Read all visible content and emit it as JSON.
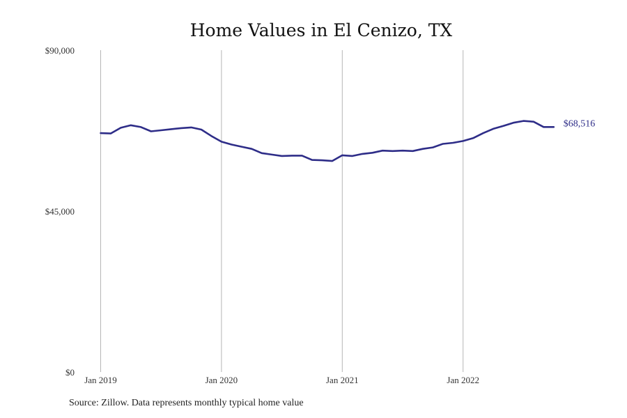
{
  "chart_data": {
    "type": "line",
    "title": "Home Values in El Cenizo, TX",
    "xlabel": "",
    "ylabel": "",
    "ylim": [
      0,
      90000
    ],
    "y_ticks": [
      {
        "value": 0,
        "label": "$0"
      },
      {
        "value": 45000,
        "label": "$45,000"
      },
      {
        "value": 90000,
        "label": "$90,000"
      }
    ],
    "x_ticks": [
      {
        "value": "2019-01",
        "label": "Jan 2019"
      },
      {
        "value": "2020-01",
        "label": "Jan 2020"
      },
      {
        "value": "2021-01",
        "label": "Jan 2021"
      },
      {
        "value": "2022-01",
        "label": "Jan 2022"
      }
    ],
    "grid": "vertical",
    "line_color": "#2e2d88",
    "series": [
      {
        "x": [
          "2019-01",
          "2019-02",
          "2019-03",
          "2019-04",
          "2019-05",
          "2019-06",
          "2019-07",
          "2019-08",
          "2019-09",
          "2019-10",
          "2019-11",
          "2019-12",
          "2020-01",
          "2020-02",
          "2020-03",
          "2020-04",
          "2020-05",
          "2020-06",
          "2020-07",
          "2020-08",
          "2020-09",
          "2020-10",
          "2020-11",
          "2020-12",
          "2021-01",
          "2021-02",
          "2021-03",
          "2021-04",
          "2021-05",
          "2021-06",
          "2021-07",
          "2021-08",
          "2021-09",
          "2021-10",
          "2021-11",
          "2021-12",
          "2022-01",
          "2022-02",
          "2022-03",
          "2022-04",
          "2022-05",
          "2022-06",
          "2022-07",
          "2022-08",
          "2022-09",
          "2022-10"
        ],
        "values": [
          66800,
          66700,
          68300,
          69000,
          68500,
          67300,
          67600,
          67900,
          68200,
          68400,
          67800,
          66000,
          64400,
          63600,
          63000,
          62400,
          61200,
          60800,
          60400,
          60500,
          60500,
          59300,
          59200,
          59000,
          60600,
          60400,
          61000,
          61300,
          61900,
          61800,
          61900,
          61800,
          62400,
          62800,
          63800,
          64100,
          64600,
          65400,
          66800,
          68000,
          68800,
          69700,
          70200,
          70000,
          68516,
          68516
        ],
        "end_label": "$68,516"
      }
    ],
    "source": "Source: Zillow. Data represents monthly typical home value"
  }
}
